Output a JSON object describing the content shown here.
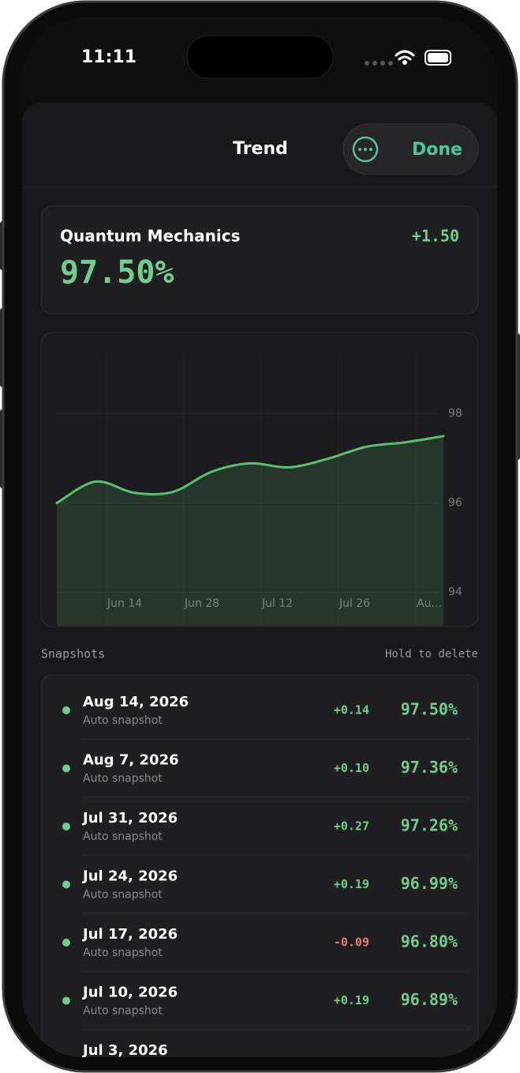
{
  "status": {
    "time": "11:11"
  },
  "header": {
    "title": "Trend",
    "action": "Done"
  },
  "summary": {
    "name": "Quantum Mechanics",
    "change": "+1.50",
    "value": "97.50%"
  },
  "chart_data": {
    "type": "line",
    "x": [
      "Jun 5",
      "Jun 12",
      "Jun 19",
      "Jun 26",
      "Jul 3",
      "Jul 10",
      "Jul 17",
      "Jul 24",
      "Jul 31",
      "Aug 7",
      "Aug 14"
    ],
    "values": [
      96.0,
      96.48,
      96.23,
      96.25,
      96.7,
      96.89,
      96.8,
      96.99,
      97.26,
      97.36,
      97.5
    ],
    "color": "#5cbf6e",
    "xlim": [
      "Jun 5",
      "Aug 14"
    ],
    "xticks": [
      "Jun 14",
      "Jun 28",
      "Jul 12",
      "Jul 26",
      {
        "value": "Aug 9",
        "label": "Au..."
      }
    ],
    "ylim": [
      93.25,
      99.8
    ],
    "yticks": [
      94,
      96,
      98
    ],
    "grid": true
  },
  "snapshots": {
    "title": "Snapshots",
    "hint": "Hold to delete",
    "rows": [
      {
        "date": "Aug 14, 2026",
        "note": "Auto snapshot",
        "change": "+0.14",
        "value": "97.50%"
      },
      {
        "date": "Aug 7, 2026",
        "note": "Auto snapshot",
        "change": "+0.10",
        "value": "97.36%"
      },
      {
        "date": "Jul 31, 2026",
        "note": "Auto snapshot",
        "change": "+0.27",
        "value": "97.26%"
      },
      {
        "date": "Jul 24, 2026",
        "note": "Auto snapshot",
        "change": "+0.19",
        "value": "96.99%"
      },
      {
        "date": "Jul 17, 2026",
        "note": "Auto snapshot",
        "change": "-0.09",
        "value": "96.80%"
      },
      {
        "date": "Jul 10, 2026",
        "note": "Auto snapshot",
        "change": "+0.19",
        "value": "96.89%"
      },
      {
        "date": "Jul 3, 2026"
      }
    ]
  }
}
